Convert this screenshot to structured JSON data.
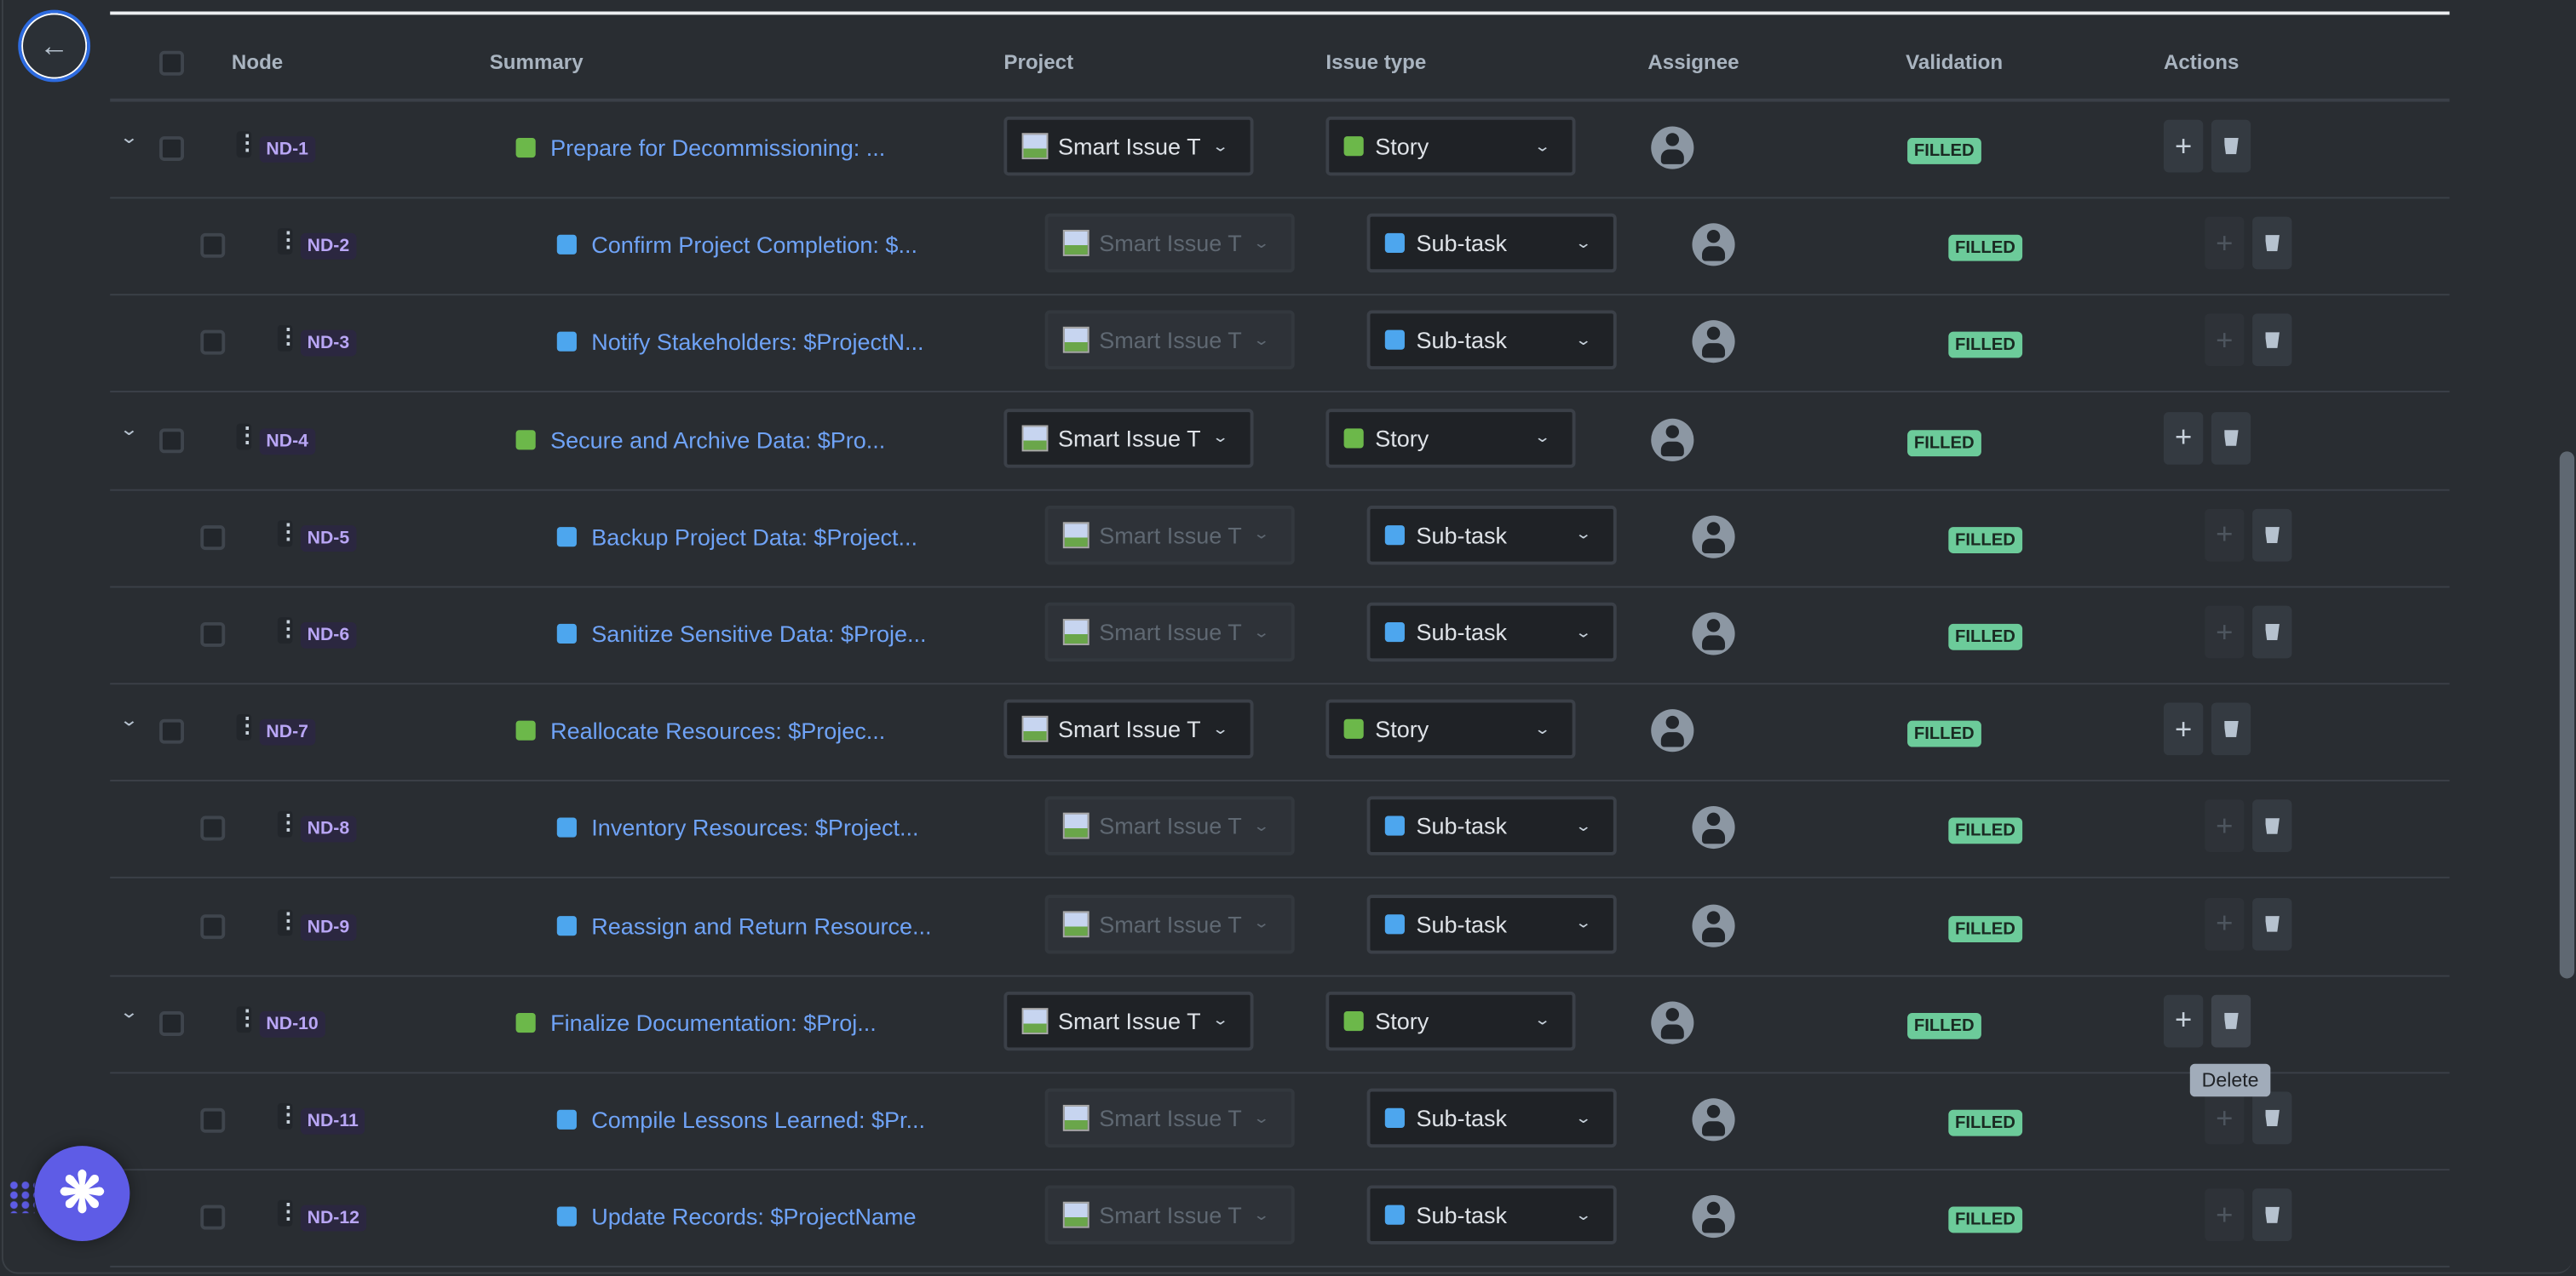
{
  "header": {
    "node": "Node",
    "summary": "Summary",
    "project": "Project",
    "issue_type": "Issue type",
    "assignee": "Assignee",
    "validation": "Validation",
    "actions": "Actions"
  },
  "colors": {
    "accent": "#5e5ce6",
    "story": "#6cb84a",
    "subtask": "#4da6ee",
    "filled": "#6ccb9a",
    "link": "#6fa3f7"
  },
  "rows": [
    {
      "id": "ND-1",
      "level": 0,
      "summary": "Prepare for Decommissioning: ...",
      "project": "Smart Issue T",
      "type": "Story",
      "validation": "FILLED"
    },
    {
      "id": "ND-2",
      "level": 1,
      "summary": "Confirm Project Completion: $...",
      "project": "Smart Issue T",
      "type": "Sub-task",
      "validation": "FILLED"
    },
    {
      "id": "ND-3",
      "level": 1,
      "summary": "Notify Stakeholders: $ProjectN...",
      "project": "Smart Issue T",
      "type": "Sub-task",
      "validation": "FILLED"
    },
    {
      "id": "ND-4",
      "level": 0,
      "summary": "Secure and Archive Data: $Pro...",
      "project": "Smart Issue T",
      "type": "Story",
      "validation": "FILLED"
    },
    {
      "id": "ND-5",
      "level": 1,
      "summary": "Backup Project Data: $Project...",
      "project": "Smart Issue T",
      "type": "Sub-task",
      "validation": "FILLED"
    },
    {
      "id": "ND-6",
      "level": 1,
      "summary": "Sanitize Sensitive Data: $Proje...",
      "project": "Smart Issue T",
      "type": "Sub-task",
      "validation": "FILLED"
    },
    {
      "id": "ND-7",
      "level": 0,
      "summary": "Reallocate Resources: $Projec...",
      "project": "Smart Issue T",
      "type": "Story",
      "validation": "FILLED"
    },
    {
      "id": "ND-8",
      "level": 1,
      "summary": "Inventory Resources: $Project...",
      "project": "Smart Issue T",
      "type": "Sub-task",
      "validation": "FILLED"
    },
    {
      "id": "ND-9",
      "level": 1,
      "summary": "Reassign and Return Resource...",
      "project": "Smart Issue T",
      "type": "Sub-task",
      "validation": "FILLED"
    },
    {
      "id": "ND-10",
      "level": 0,
      "summary": "Finalize Documentation: $Proj...",
      "project": "Smart Issue T",
      "type": "Story",
      "validation": "FILLED"
    },
    {
      "id": "ND-11",
      "level": 1,
      "summary": "Compile Lessons Learned: $Pr...",
      "project": "Smart Issue T",
      "type": "Sub-task",
      "validation": "FILLED"
    },
    {
      "id": "ND-12",
      "level": 1,
      "summary": "Update Records: $ProjectName",
      "project": "Smart Issue T",
      "type": "Sub-task",
      "validation": "FILLED"
    }
  ],
  "tooltip": {
    "text": "Delete"
  }
}
